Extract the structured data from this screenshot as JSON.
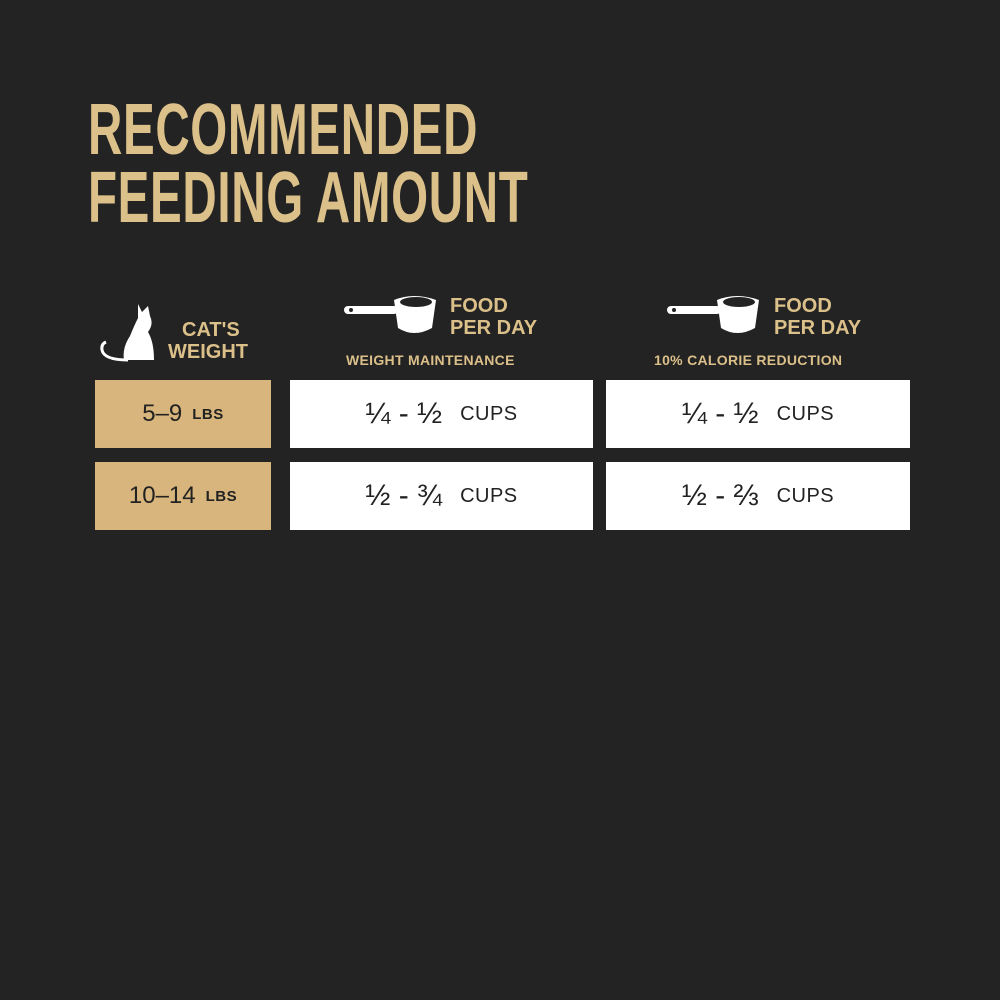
{
  "title": {
    "line1": "RECOMMENDED",
    "line2": "FEEDING AMOUNT"
  },
  "colors": {
    "background": "#232323",
    "gold": "#dcc08a",
    "weight_cell": "#d8b57c",
    "amount_cell": "#ffffff"
  },
  "headers": {
    "weight": {
      "icon": "cat-icon",
      "line1": "CAT'S",
      "line2": "WEIGHT"
    },
    "maintenance": {
      "icon": "measuring-cup-icon",
      "line1": "FOOD",
      "line2": "PER DAY",
      "sub": "WEIGHT MAINTENANCE"
    },
    "reduction": {
      "icon": "measuring-cup-icon",
      "line1": "FOOD",
      "line2": "PER DAY",
      "sub": "10% CALORIE REDUCTION"
    }
  },
  "rows": [
    {
      "weight": "5–9",
      "unit": "LBS",
      "maintenance": "¼ - ½",
      "reduction": "¼ - ½",
      "cups": "CUPS"
    },
    {
      "weight": "10–14",
      "unit": "LBS",
      "maintenance": "½ - ¾",
      "reduction": "½ - ⅔",
      "cups": "CUPS"
    }
  ]
}
